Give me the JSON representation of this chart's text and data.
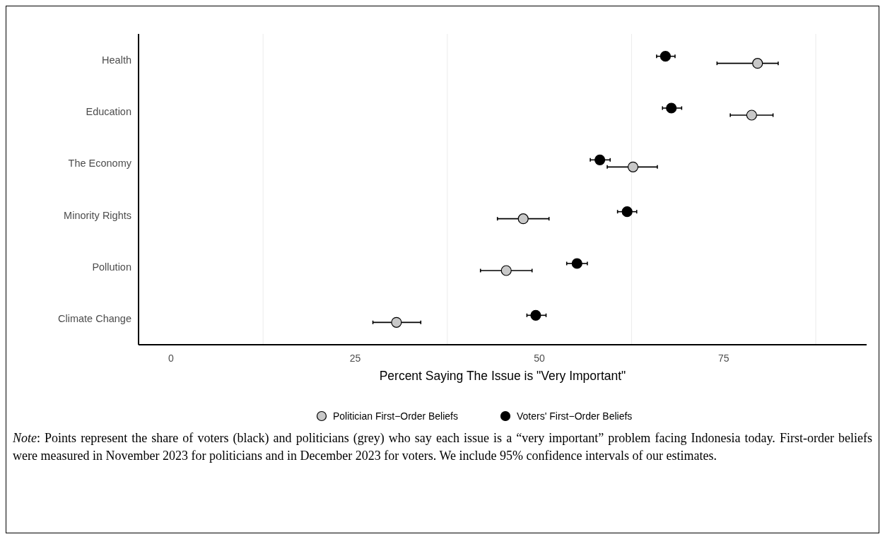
{
  "chart_data": {
    "type": "scatter",
    "orientation": "horizontal",
    "xlabel": "Percent Saying The Issue is \"Very Important\"",
    "categories": [
      "Health",
      "Education",
      "The Economy",
      "Minority Rights",
      "Pollution",
      "Climate Change"
    ],
    "xlim": [
      -4.4,
      94.4
    ],
    "xticks": [
      0,
      {
        "value": 12.5,
        "label": null
      },
      25,
      {
        "value": 37.5,
        "label": null
      },
      50,
      {
        "value": 62.5,
        "label": null
      },
      75,
      {
        "value": 87.5,
        "label": null
      }
    ],
    "grid": "x",
    "legend": "bottom",
    "marker": "circle",
    "series": [
      {
        "name": "Politician First−Order Beliefs",
        "color": "#c8c8c8",
        "values": [
          79.6,
          78.8,
          62.7,
          47.8,
          45.5,
          30.6
        ],
        "errors": [
          [
            74.1,
            82.4
          ],
          [
            75.9,
            81.7
          ],
          [
            59.2,
            66.0
          ],
          [
            44.3,
            51.3
          ],
          [
            42.0,
            49.0
          ],
          [
            27.4,
            33.9
          ]
        ]
      },
      {
        "name": "Voters' First−Order Beliefs",
        "color": "#000000",
        "values": [
          67.1,
          67.9,
          58.2,
          61.9,
          55.1,
          49.5
        ],
        "errors": [
          [
            65.9,
            68.4
          ],
          [
            66.7,
            69.3
          ],
          [
            56.9,
            59.6
          ],
          [
            60.6,
            63.2
          ],
          [
            53.7,
            56.5
          ],
          [
            48.3,
            50.9
          ]
        ]
      }
    ],
    "annotations": [
      "Note: Points represent the share of voters (black) and politicians (grey) who say each issue is a “very important” problem facing Indonesia today.  First-order beliefs were measured in November 2023 for politicians and in December 2023 for voters. We include 95% confidence intervals of our estimates."
    ]
  }
}
